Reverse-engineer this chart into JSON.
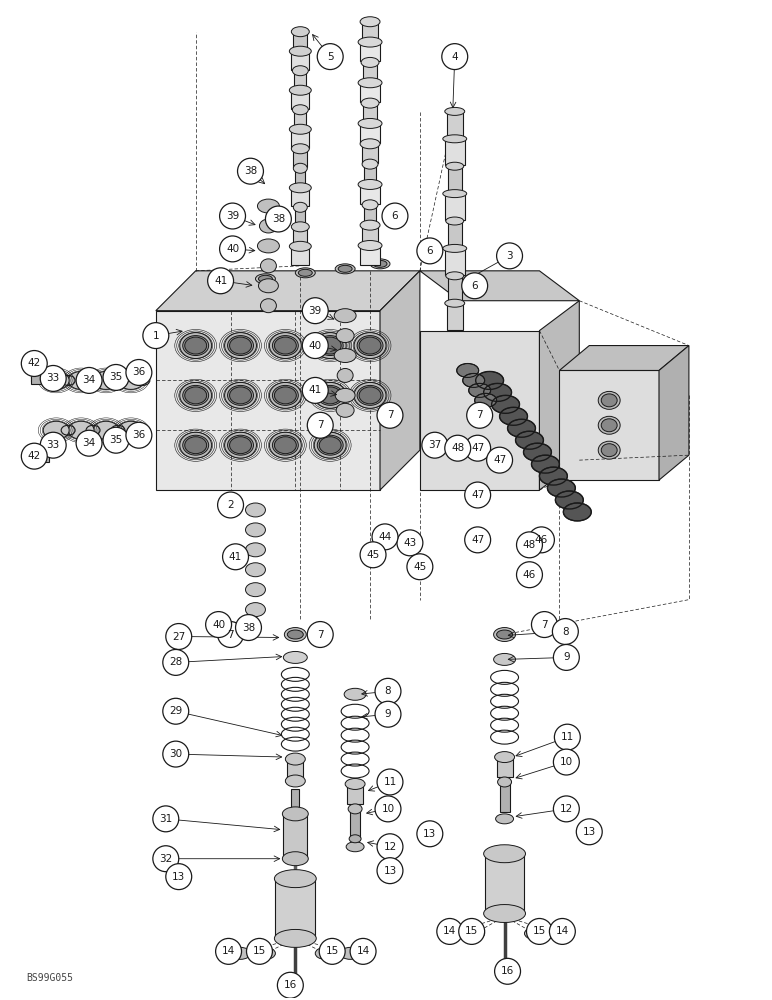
{
  "background_color": "#ffffff",
  "watermark": "BS99G055",
  "fig_width": 7.72,
  "fig_height": 10.0,
  "dpi": 100,
  "line_color": "#1a1a1a",
  "callout_r": 0.022,
  "callout_fontsize": 7.5
}
